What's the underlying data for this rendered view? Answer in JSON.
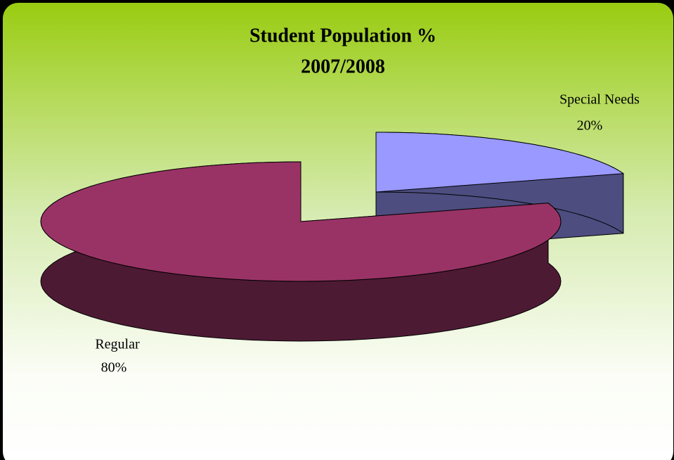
{
  "chart_data": {
    "type": "pie3d",
    "title": "Student Population %",
    "subtitle": "2007/2008",
    "categories": [
      "Special Needs",
      "Regular"
    ],
    "values": [
      20,
      80
    ],
    "value_labels": [
      "20%",
      "80%"
    ],
    "series": [
      {
        "name": "Special Needs",
        "color": "#9999ff"
      },
      {
        "name": "Regular",
        "color": "#993366"
      }
    ]
  }
}
